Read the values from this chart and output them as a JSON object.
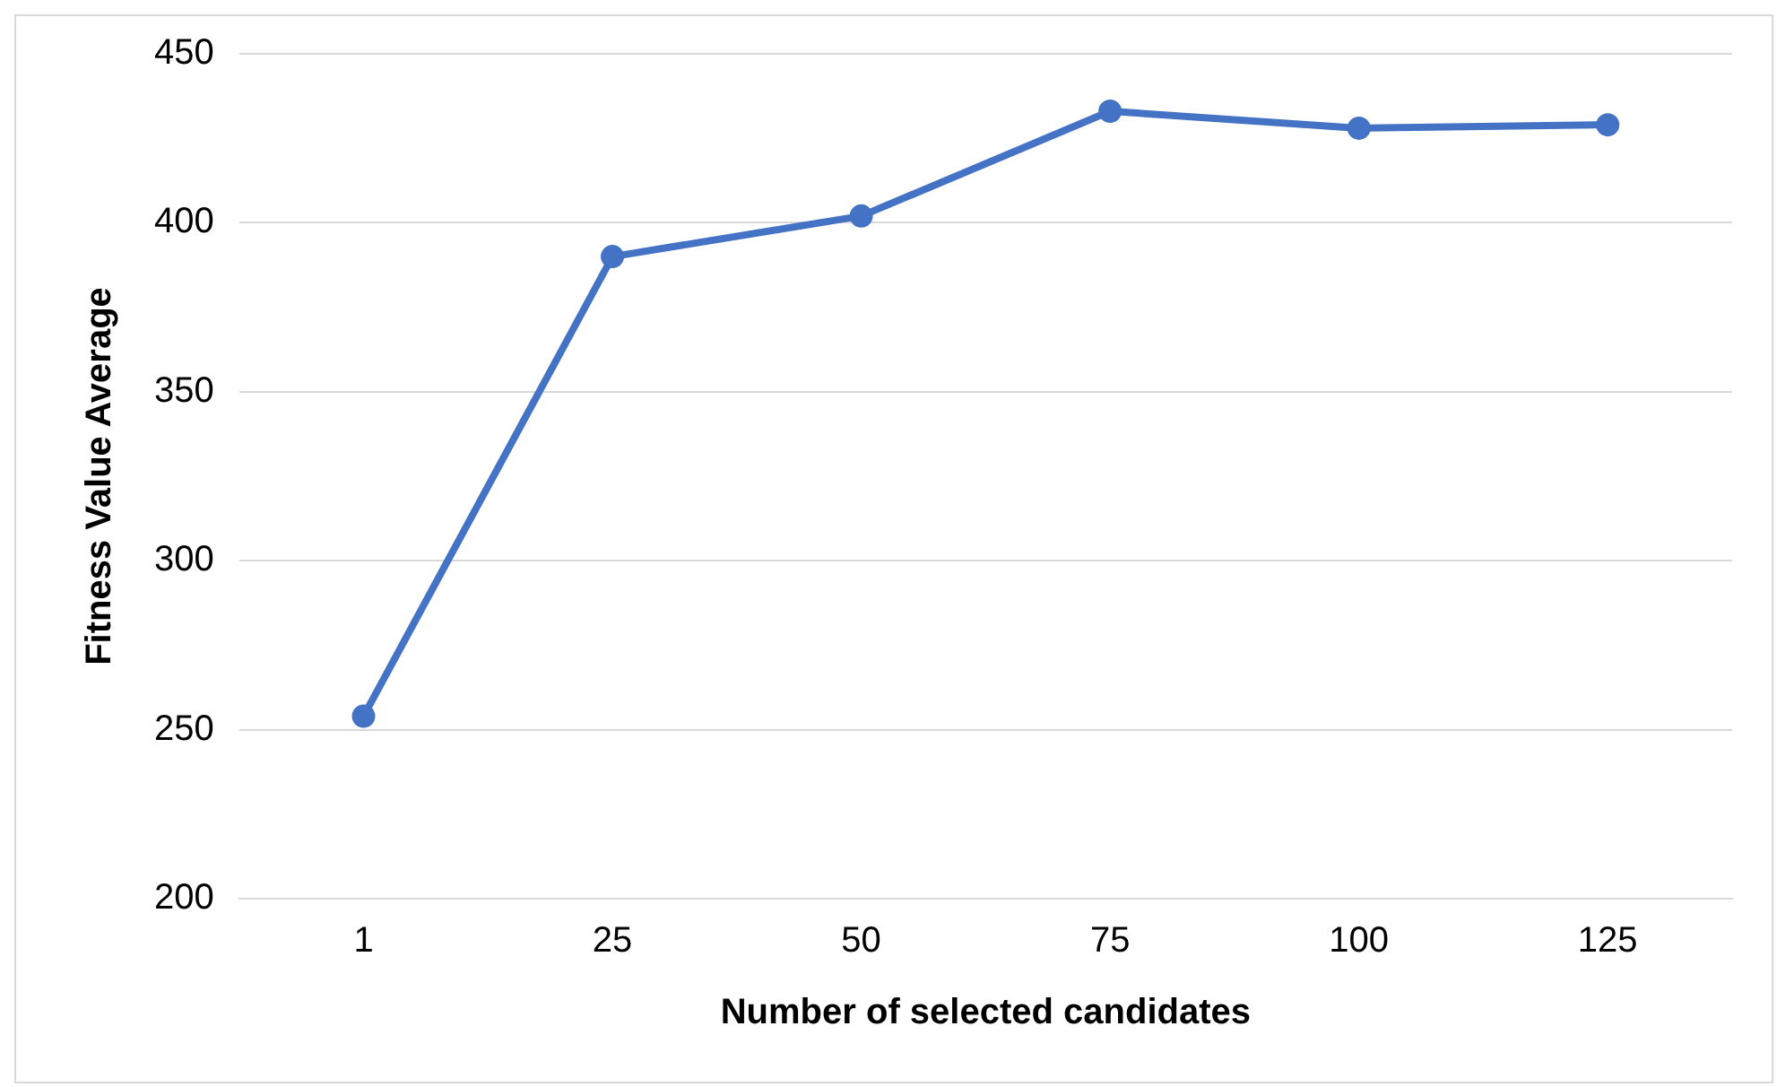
{
  "chart_data": {
    "type": "line",
    "xlabel": "Number of selected candidates",
    "ylabel": "Fitness Value Average",
    "categories": [
      "1",
      "25",
      "50",
      "75",
      "100",
      "125"
    ],
    "series": [
      {
        "color": "#4472c4",
        "values": [
          254,
          390,
          402,
          433,
          428,
          429
        ]
      }
    ],
    "ylim": [
      200,
      450
    ],
    "yticks": [
      200,
      250,
      300,
      350,
      400,
      450
    ],
    "grid": "y",
    "marker": "circle",
    "line_style": "solid"
  }
}
